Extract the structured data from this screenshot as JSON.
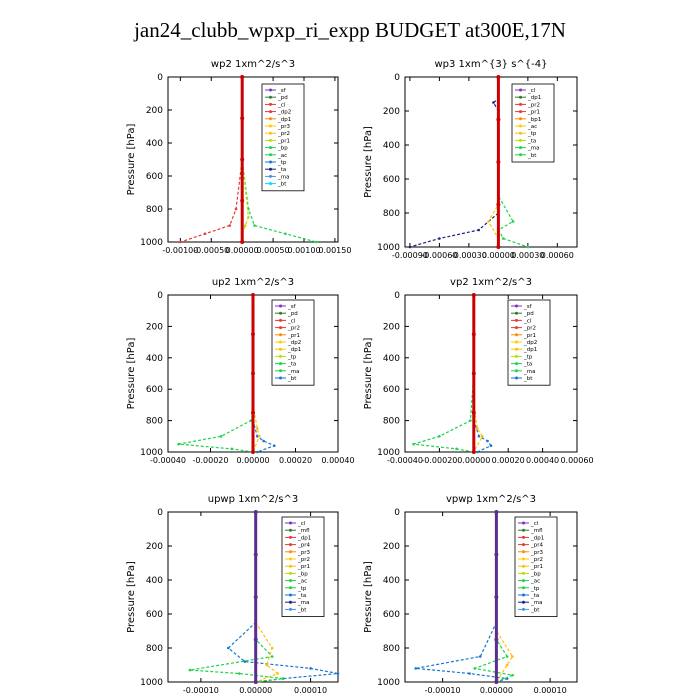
{
  "page": {
    "title": "jan24_clubb_wpxp_ri_expp  BUDGET at300E,17N"
  },
  "colors": {
    "sf": "#7b2fbf",
    "pd": "#2e7d32",
    "cl": "#e53935",
    "dp1": "#e53935",
    "dp2": "#ff8a00",
    "pr1": "#b9e000",
    "pr2": "#ffc107",
    "pr3": "#ffcc00",
    "pr4": "#e53935",
    "bp": "#1fd34a",
    "bp1": "#1fd34a",
    "ac": "#1fd34a",
    "tp": "#1976d2",
    "ta": "#1a237e",
    "ma": "#4a90e2",
    "bt": "#00d9ff",
    "mfl": "#5c2d91",
    "main": "#cc0000"
  },
  "chart_data": [
    {
      "type": "line",
      "title": "wp2  1xm^2/s^3",
      "ylabel": "Pressure [hPa]",
      "ylim": [
        1000,
        0
      ],
      "yticks": [
        "0",
        "200",
        "400",
        "600",
        "800",
        "1000"
      ],
      "xlim": [
        -0.0012,
        0.00155
      ],
      "xtick_labels": [
        "-0.00100",
        "-0.00050",
        "0.00000",
        "0.00050",
        "0.00100",
        "0.00150"
      ],
      "xtick_values": [
        -0.001,
        -0.0005,
        0.0,
        0.0005,
        0.001,
        0.0015
      ],
      "legend": [
        "_sf",
        "_pd",
        "_cl",
        "_dp2",
        "_dp1",
        "_pr3",
        "_pr2",
        "_pr1",
        "_bp",
        "_ac",
        "_tp",
        "_ta",
        "_ma",
        "_bt"
      ],
      "series": [
        {
          "name": "_cl",
          "color_key": "cl",
          "x": [
            0,
            0,
            0,
            -0.0001,
            -0.0002,
            -0.0006,
            -0.001
          ],
          "y": [
            0,
            200,
            500,
            800,
            900,
            950,
            1000
          ]
        },
        {
          "name": "_bp",
          "color_key": "bp",
          "x": [
            0,
            0,
            0,
            0.0001,
            0.0002,
            0.0007,
            0.0012
          ],
          "y": [
            0,
            200,
            500,
            800,
            900,
            950,
            1000
          ]
        },
        {
          "name": "_pr1",
          "color_key": "pr1",
          "x": [
            0,
            0,
            0.0001,
            5e-05,
            0,
            0
          ],
          "y": [
            0,
            500,
            850,
            900,
            950,
            1000
          ]
        },
        {
          "name": "_bt",
          "color_key": "main",
          "x": [
            0,
            0,
            0,
            0,
            0
          ],
          "y": [
            0,
            250,
            500,
            750,
            1000
          ]
        }
      ]
    },
    {
      "type": "line",
      "title": "wp3  1xm^{3} s^{-4}",
      "ylabel": "Pressure [hPa]",
      "ylim": [
        1000,
        0
      ],
      "yticks": [
        "0",
        "200",
        "400",
        "600",
        "800",
        "1000"
      ],
      "xlim": [
        -0.00095,
        0.0008
      ],
      "xtick_labels": [
        "-0.00090",
        "-0.00060",
        "-0.00030",
        "0.00000",
        "0.00030",
        "0.00060"
      ],
      "xtick_values": [
        -0.0009,
        -0.0006,
        -0.0003,
        0.0,
        0.0003,
        0.0006
      ],
      "legend": [
        "_cl",
        "_dp1",
        "_pr2",
        "_pr1",
        "_bp1",
        "_ac",
        "_tp",
        "_ta",
        "_ma",
        "_bt"
      ],
      "series": [
        {
          "name": "_ta",
          "color_key": "ta",
          "x": [
            0,
            0,
            -5e-05,
            0,
            0,
            -0.0002,
            -0.0006,
            -0.0009
          ],
          "y": [
            0,
            130,
            150,
            200,
            800,
            900,
            950,
            1000
          ]
        },
        {
          "name": "_ac",
          "color_key": "ac",
          "x": [
            0,
            0,
            0.00015,
            0,
            5e-05,
            0.0003
          ],
          "y": [
            0,
            700,
            850,
            900,
            950,
            1000
          ]
        },
        {
          "name": "_pr2",
          "color_key": "pr2",
          "x": [
            0,
            0,
            -0.0001,
            0,
            0
          ],
          "y": [
            0,
            750,
            850,
            950,
            1000
          ]
        },
        {
          "name": "_bt",
          "color_key": "main",
          "x": [
            0,
            0,
            0,
            0,
            0
          ],
          "y": [
            0,
            250,
            500,
            750,
            1000
          ]
        }
      ]
    },
    {
      "type": "line",
      "title": "up2  1xm^2/s^3",
      "ylabel": "Pressure [hPa]",
      "ylim": [
        1000,
        0
      ],
      "yticks": [
        "0",
        "200",
        "400",
        "600",
        "800",
        "1000"
      ],
      "xlim": [
        -0.0004,
        0.0004
      ],
      "xtick_labels": [
        "-0.00040",
        "-0.00020",
        "0.00000",
        "0.00020",
        "0.00040"
      ],
      "xtick_values": [
        -0.0004,
        -0.0002,
        0.0,
        0.0002,
        0.0004
      ],
      "legend": [
        "_sf",
        "_pd",
        "_cl",
        "_pr2",
        "_pr1",
        "_dp2",
        "_dp1",
        "_tp",
        "_ta",
        "_ma",
        "_bt"
      ],
      "series": [
        {
          "name": "_pd",
          "color_key": "bp",
          "x": [
            0,
            0,
            0,
            -1e-05,
            -0.00015,
            -0.00035,
            -0.0001,
            0
          ],
          "y": [
            0,
            500,
            750,
            800,
            900,
            950,
            980,
            1000
          ]
        },
        {
          "name": "_tp",
          "color_key": "tp",
          "x": [
            0,
            0,
            2e-05,
            5e-05,
            0.0001,
            2e-05
          ],
          "y": [
            0,
            800,
            900,
            930,
            960,
            1000
          ]
        },
        {
          "name": "_pr2",
          "color_key": "pr2",
          "x": [
            0,
            0,
            2e-05,
            3e-05,
            0
          ],
          "y": [
            0,
            700,
            850,
            900,
            1000
          ]
        },
        {
          "name": "_bt",
          "color_key": "main",
          "x": [
            0,
            0,
            0,
            0,
            0
          ],
          "y": [
            0,
            250,
            500,
            750,
            1000
          ]
        }
      ]
    },
    {
      "type": "line",
      "title": "vp2  1xm^2/s^3",
      "ylabel": "Pressure [hPa]",
      "ylim": [
        1000,
        0
      ],
      "yticks": [
        "0",
        "200",
        "400",
        "600",
        "800",
        "1000"
      ],
      "xlim": [
        -0.0004,
        0.0006
      ],
      "xtick_labels": [
        "-0.00040",
        "-0.00020",
        "0.00000",
        "0.00020",
        "0.00040",
        "0.00060"
      ],
      "xtick_values": [
        -0.0004,
        -0.0002,
        0.0,
        0.0002,
        0.0004,
        0.0006
      ],
      "legend": [
        "_sf",
        "_pd",
        "_cl",
        "_pr2",
        "_pr1",
        "_dp2",
        "_dp1",
        "_tp",
        "_ta",
        "_ma",
        "_bt"
      ],
      "series": [
        {
          "name": "_pd",
          "color_key": "bp",
          "x": [
            0,
            0,
            -2e-05,
            -0.0002,
            -0.00035,
            -0.0001,
            0
          ],
          "y": [
            0,
            500,
            800,
            900,
            950,
            980,
            1000
          ]
        },
        {
          "name": "_tp",
          "color_key": "tp",
          "x": [
            0,
            0,
            3e-05,
            8e-05,
            0.0001,
            2e-05
          ],
          "y": [
            0,
            800,
            900,
            930,
            960,
            1000
          ]
        },
        {
          "name": "_pr2",
          "color_key": "pr2",
          "x": [
            0,
            0,
            2e-05,
            5e-05,
            0
          ],
          "y": [
            0,
            700,
            850,
            900,
            1000
          ]
        },
        {
          "name": "_bt",
          "color_key": "main",
          "x": [
            0,
            0,
            0,
            0,
            0
          ],
          "y": [
            0,
            250,
            500,
            750,
            1000
          ]
        }
      ]
    },
    {
      "type": "line",
      "title": "upwp  1xm^2/s^3",
      "ylabel": "Pressure [hPa]",
      "ylim": [
        1000,
        0
      ],
      "yticks": [
        "0",
        "200",
        "400",
        "600",
        "800",
        "1000"
      ],
      "xlim": [
        -0.00016,
        0.00015
      ],
      "xtick_labels": [
        "-0.00010",
        "0.00000",
        "0.00010"
      ],
      "xtick_values": [
        -0.0001,
        0.0,
        0.0001
      ],
      "legend": [
        "_cl",
        "_mfl",
        "_dp1",
        "_pr4",
        "_pr3",
        "_pr2",
        "_pr1",
        "_bp",
        "_ac",
        "_tp",
        "_ta",
        "_ma",
        "_bt"
      ],
      "series": [
        {
          "name": "_tp",
          "color_key": "tp",
          "x": [
            0,
            0,
            -5e-05,
            -2e-05,
            0.0001,
            0.00015,
            5e-05,
            0
          ],
          "y": [
            0,
            650,
            800,
            880,
            920,
            950,
            980,
            1000
          ]
        },
        {
          "name": "_ac",
          "color_key": "ac",
          "x": [
            0,
            0,
            3e-05,
            -0.00012,
            -3e-05,
            5e-05,
            0
          ],
          "y": [
            0,
            750,
            850,
            930,
            950,
            980,
            1000
          ]
        },
        {
          "name": "_pr2",
          "color_key": "pr2",
          "x": [
            0,
            0,
            3e-05,
            2e-05,
            4e-05,
            0
          ],
          "y": [
            0,
            650,
            800,
            900,
            950,
            1000
          ]
        },
        {
          "name": "_bt",
          "color_key": "mfl",
          "x": [
            0,
            0,
            0,
            0,
            0
          ],
          "y": [
            0,
            250,
            500,
            750,
            1000
          ]
        }
      ]
    },
    {
      "type": "line",
      "title": "vpwp  1xm^2/s^3",
      "ylabel": "Pressure [hPa]",
      "ylim": [
        1000,
        0
      ],
      "yticks": [
        "0",
        "200",
        "400",
        "600",
        "800",
        "1000"
      ],
      "xlim": [
        -0.00017,
        0.00015
      ],
      "xtick_labels": [
        "-0.00010",
        "0.00000",
        "0.00010"
      ],
      "xtick_values": [
        -0.0001,
        0.0,
        0.0001
      ],
      "legend": [
        "_cl",
        "_mfl",
        "_dp1",
        "_pr4",
        "_pr3",
        "_pr2",
        "_pr1",
        "_bp",
        "_ac",
        "_tp",
        "_ta",
        "_ma",
        "_bt"
      ],
      "series": [
        {
          "name": "_tp",
          "color_key": "tp",
          "x": [
            0,
            0,
            -3e-05,
            -0.00015,
            -5e-05,
            2e-05,
            0
          ],
          "y": [
            0,
            650,
            850,
            920,
            950,
            980,
            1000
          ]
        },
        {
          "name": "_ac",
          "color_key": "ac",
          "x": [
            0,
            0,
            2e-05,
            -4e-05,
            3e-05,
            0
          ],
          "y": [
            0,
            750,
            850,
            920,
            960,
            1000
          ]
        },
        {
          "name": "_pr2",
          "color_key": "pr2",
          "x": [
            0,
            0,
            3e-05,
            2e-05,
            0
          ],
          "y": [
            0,
            700,
            850,
            900,
            1000
          ]
        },
        {
          "name": "_bt",
          "color_key": "mfl",
          "x": [
            0,
            0,
            0,
            0,
            0
          ],
          "y": [
            0,
            250,
            500,
            750,
            1000
          ]
        }
      ]
    }
  ]
}
